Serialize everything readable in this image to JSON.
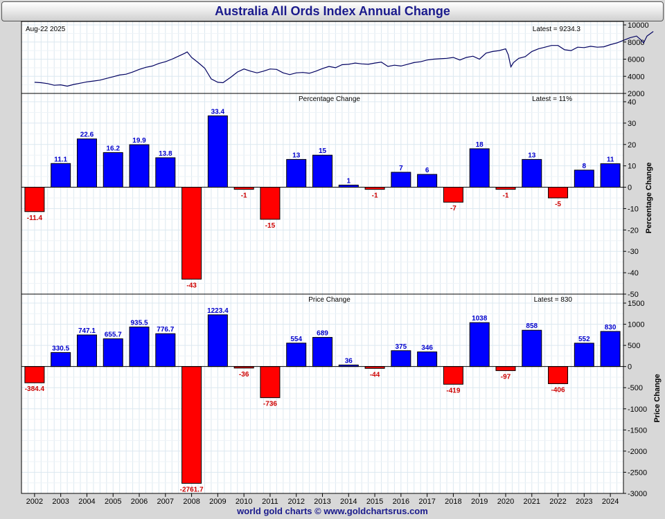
{
  "title": "Australia All Ords Index Annual Change",
  "footer": "world gold charts © www.goldchartsrus.com",
  "colors": {
    "up": "#0000ff",
    "down": "#ff0000",
    "line": "#000060",
    "label_up": "#0000cc",
    "label_down": "#cc0000"
  },
  "chart_data": [
    {
      "type": "line",
      "corner_label": "Aug-22  2025",
      "latest_label": "Latest = 9234.3",
      "ylim": [
        2000,
        10000
      ],
      "y_ticks": [
        2000,
        4000,
        6000,
        8000,
        10000
      ],
      "grid": true,
      "x": [
        2002.0,
        2002.25,
        2002.5,
        2002.75,
        2003.0,
        2003.25,
        2003.5,
        2003.75,
        2004.0,
        2004.25,
        2004.5,
        2004.75,
        2005.0,
        2005.25,
        2005.5,
        2005.75,
        2006.0,
        2006.25,
        2006.5,
        2006.75,
        2007.0,
        2007.25,
        2007.5,
        2007.75,
        2007.83,
        2008.0,
        2008.25,
        2008.5,
        2008.75,
        2009.0,
        2009.2,
        2009.5,
        2009.75,
        2010.0,
        2010.25,
        2010.5,
        2010.75,
        2011.0,
        2011.25,
        2011.5,
        2011.75,
        2012.0,
        2012.25,
        2012.5,
        2012.75,
        2013.0,
        2013.25,
        2013.5,
        2013.75,
        2014.0,
        2014.25,
        2014.5,
        2014.75,
        2015.0,
        2015.25,
        2015.5,
        2015.75,
        2016.0,
        2016.25,
        2016.5,
        2016.75,
        2017.0,
        2017.25,
        2017.5,
        2017.75,
        2018.0,
        2018.25,
        2018.5,
        2018.75,
        2019.0,
        2019.25,
        2019.5,
        2019.75,
        2020.0,
        2020.1,
        2020.2,
        2020.3,
        2020.5,
        2020.75,
        2021.0,
        2021.25,
        2021.5,
        2021.75,
        2022.0,
        2022.25,
        2022.5,
        2022.75,
        2023.0,
        2023.25,
        2023.5,
        2023.75,
        2024.0,
        2024.25,
        2024.5,
        2024.75,
        2025.0,
        2025.15,
        2025.27,
        2025.4,
        2025.64
      ],
      "y": [
        3300,
        3250,
        3150,
        2950,
        3000,
        2850,
        3050,
        3200,
        3350,
        3450,
        3550,
        3750,
        3950,
        4150,
        4250,
        4500,
        4800,
        5050,
        5200,
        5500,
        5700,
        6000,
        6350,
        6700,
        6850,
        6200,
        5600,
        4950,
        3700,
        3300,
        3250,
        3900,
        4500,
        4850,
        4600,
        4400,
        4600,
        4850,
        4800,
        4400,
        4200,
        4400,
        4450,
        4350,
        4600,
        4900,
        5150,
        5000,
        5350,
        5400,
        5550,
        5450,
        5400,
        5550,
        5650,
        5150,
        5300,
        5200,
        5400,
        5600,
        5700,
        5900,
        6000,
        6050,
        6100,
        6200,
        5900,
        6200,
        6350,
        6000,
        6700,
        6900,
        7000,
        7200,
        6500,
        5100,
        5600,
        6100,
        6300,
        6900,
        7200,
        7400,
        7600,
        7600,
        7100,
        7000,
        7400,
        7350,
        7500,
        7400,
        7450,
        7700,
        7900,
        8200,
        8500,
        8700,
        8300,
        7900,
        8700,
        9234.3
      ]
    },
    {
      "type": "bar",
      "title": "Percentage Change",
      "latest_label": "Latest = 11%",
      "ylabel": "Percentage Change",
      "ylim": [
        -50,
        40
      ],
      "y_ticks": [
        -50,
        -40,
        -30,
        -20,
        -10,
        0,
        10,
        20,
        30,
        40
      ],
      "grid": true,
      "categories": [
        "2002",
        "2003",
        "2004",
        "2005",
        "2006",
        "2007",
        "2008",
        "2009",
        "2010",
        "2011",
        "2012",
        "2013",
        "2014",
        "2015",
        "2016",
        "2017",
        "2018",
        "2019",
        "2020",
        "2021",
        "2022",
        "2023",
        "2024"
      ],
      "values": [
        -11.4,
        11.1,
        22.6,
        16.2,
        19.9,
        13.8,
        -43,
        33.4,
        -1,
        -15,
        13,
        15,
        1,
        -1,
        7,
        6,
        -7,
        18,
        -1,
        13,
        -5,
        8,
        11
      ],
      "labels": [
        "-11.4",
        "11.1",
        "22.6",
        "16.2",
        "19.9",
        "13.8",
        "-43",
        "33.4",
        "-1",
        "-15",
        "13",
        "15",
        "1",
        "-1",
        "7",
        "6",
        "-7",
        "18",
        "-1",
        "13",
        "-5",
        "8",
        "11"
      ]
    },
    {
      "type": "bar",
      "title": "Price Change",
      "latest_label": "Latest = 830",
      "ylabel": "Price Change",
      "ylim": [
        -3000,
        1500
      ],
      "y_ticks": [
        -3000,
        -2500,
        -2000,
        -1500,
        -1000,
        -500,
        0,
        500,
        1000,
        1500
      ],
      "grid": true,
      "categories": [
        "2002",
        "2003",
        "2004",
        "2005",
        "2006",
        "2007",
        "2008",
        "2009",
        "2010",
        "2011",
        "2012",
        "2013",
        "2014",
        "2015",
        "2016",
        "2017",
        "2018",
        "2019",
        "2020",
        "2021",
        "2022",
        "2023",
        "2024"
      ],
      "values": [
        -384.4,
        330.5,
        747.1,
        655.7,
        935.5,
        776.7,
        -2761.7,
        1223.4,
        -36,
        -736,
        554,
        689,
        36,
        -44,
        375,
        346,
        -419,
        1038,
        -97,
        858,
        -406,
        552,
        830
      ],
      "labels": [
        "-384.4",
        "330.5",
        "747.1",
        "655.7",
        "935.5",
        "776.7",
        "-2761.7",
        "1223.4",
        "-36",
        "-736",
        "554",
        "689",
        "36",
        "-44",
        "375",
        "346",
        "-419",
        "1038",
        "-97",
        "858",
        "-406",
        "552",
        "830"
      ]
    }
  ]
}
